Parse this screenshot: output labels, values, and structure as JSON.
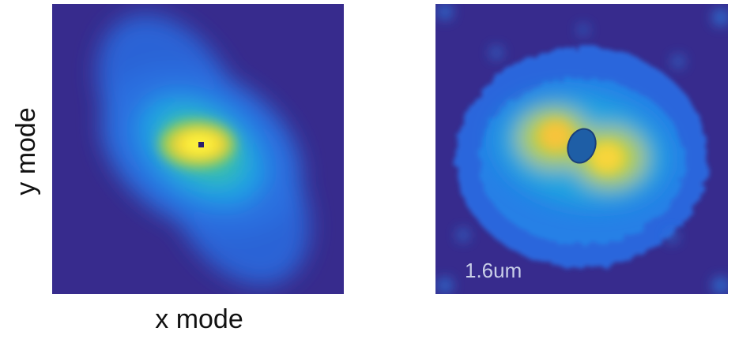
{
  "labels": {
    "y_axis": "y mode",
    "x_axis": "x mode",
    "scale": "1.6um"
  }
}
